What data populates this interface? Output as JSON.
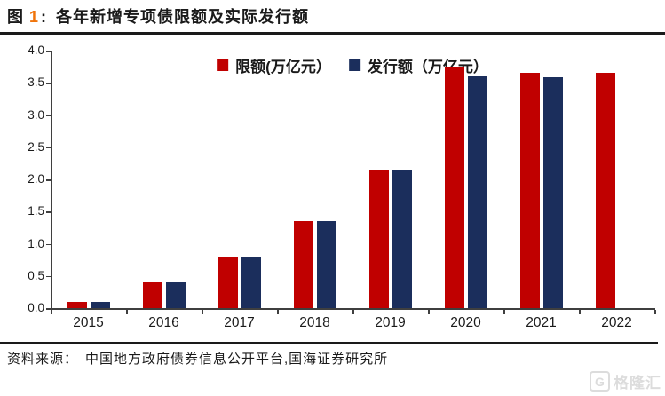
{
  "title": {
    "figure_label": "图",
    "number": "1",
    "colon": ":",
    "text": "各年新增专项债限额及实际发行额"
  },
  "colors": {
    "quota_red": "#c00000",
    "issuance_navy": "#1b2e5c",
    "title_number_orange": "#f0740a",
    "axis": "#3f3f3f",
    "watermark_gray": "#dcdcdc"
  },
  "legend": [
    {
      "label": "限额(万亿元）",
      "color": "#c00000"
    },
    {
      "label": "发行额（万亿元）",
      "color": "#1b2e5c"
    }
  ],
  "chart_data": {
    "type": "bar",
    "categories": [
      "2015",
      "2016",
      "2017",
      "2018",
      "2019",
      "2020",
      "2021",
      "2022"
    ],
    "series": [
      {
        "name": "限额(万亿元）",
        "color": "#c00000",
        "values": [
          0.1,
          0.4,
          0.8,
          1.35,
          2.15,
          3.75,
          3.65,
          3.65
        ]
      },
      {
        "name": "发行额（万亿元）",
        "color": "#1b2e5c",
        "values": [
          0.09,
          0.4,
          0.8,
          1.35,
          2.15,
          3.6,
          3.58,
          null
        ]
      }
    ],
    "title": "各年新增专项债限额及实际发行额",
    "xlabel": "",
    "ylabel": "",
    "ylim": [
      0,
      4.0
    ],
    "ytick_step": 0.5,
    "yticks": [
      "0.0",
      "0.5",
      "1.0",
      "1.5",
      "2.0",
      "2.5",
      "3.0",
      "3.5",
      "4.0"
    ],
    "grid": false,
    "legend_position": "top-center"
  },
  "footer": {
    "source_label": "资料来源：",
    "source_text": "中国地方政府债券信息公开平台,国海证券研究所"
  },
  "watermark": {
    "logo": "G",
    "text": "格隆汇"
  }
}
